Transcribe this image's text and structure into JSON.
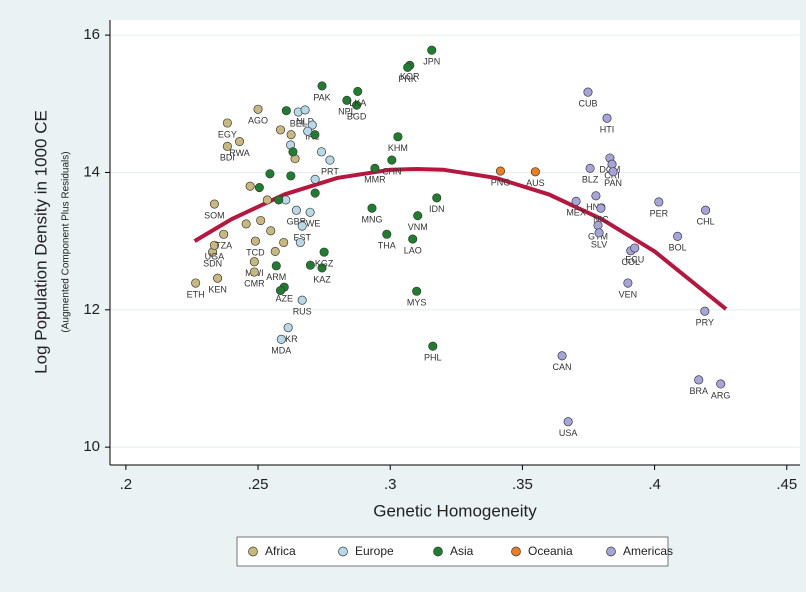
{
  "chart_data": {
    "type": "scatter",
    "y_title": "Log Population Density in 1000 CE",
    "y_subtitle": "(Augmented Component Plus Residuals)",
    "x_title": "Genetic Homogeneity",
    "xlim": [
      0.194,
      0.455
    ],
    "ylim": [
      9.74,
      16.22
    ],
    "xticks": [
      {
        "value": 0.2,
        "label": ".2"
      },
      {
        "value": 0.25,
        "label": ".25"
      },
      {
        "value": 0.3,
        "label": ".3"
      },
      {
        "value": 0.35,
        "label": ".35"
      },
      {
        "value": 0.4,
        "label": ".4"
      },
      {
        "value": 0.45,
        "label": ".45"
      }
    ],
    "yticks": [
      10,
      12,
      14,
      16
    ],
    "grid": "y",
    "legend_position": "bottom",
    "series": [
      {
        "name": "Africa",
        "color": "#c9b87e",
        "x": [
          0.2264,
          0.2347,
          0.2328,
          0.2335,
          0.237,
          0.2335,
          0.2384,
          0.243,
          0.2384,
          0.25,
          0.2486,
          0.2486,
          0.249,
          0.2455,
          0.251,
          0.2548,
          0.2565,
          0.2597,
          0.2585,
          0.2625,
          0.264,
          0.247,
          0.2535
        ],
        "y": [
          12.39,
          12.46,
          12.84,
          12.94,
          13.1,
          13.54,
          14.72,
          14.45,
          14.38,
          14.92,
          12.7,
          12.55,
          13.0,
          13.25,
          13.3,
          13.15,
          12.85,
          12.98,
          14.62,
          14.55,
          14.2,
          13.8,
          13.6
        ],
        "labels": [
          "ETH",
          "KEN",
          "SDN",
          "UGA",
          "TZA",
          "SOM",
          "EGY",
          "RWA",
          "BDI",
          "AGO",
          "MWI",
          "CMR",
          "TCD",
          null,
          null,
          null,
          null,
          null,
          null,
          null,
          null,
          null,
          null
        ]
      },
      {
        "name": "Europe",
        "color": "#b7d8e6",
        "x": [
          0.2667,
          0.2614,
          0.2588,
          0.2652,
          0.2678,
          0.2705,
          0.2772,
          0.2716,
          0.2645,
          0.2697,
          0.2667,
          0.266,
          0.2623,
          0.2688,
          0.274,
          0.2605
        ],
        "y": [
          12.14,
          11.74,
          11.57,
          14.88,
          14.91,
          14.69,
          14.18,
          13.9,
          13.45,
          13.42,
          13.22,
          12.98,
          14.4,
          14.6,
          14.3,
          13.6
        ],
        "labels": [
          "RUS",
          "UKR",
          "MDA",
          "BEL",
          "NLD",
          "IRL",
          "PRT",
          null,
          "GBR",
          "SWE",
          "EST",
          null,
          null,
          null,
          null,
          null
        ]
      },
      {
        "name": "Asia",
        "color": "#1d7f2e",
        "x": [
          0.3157,
          0.3074,
          0.3066,
          0.2742,
          0.2836,
          0.2873,
          0.2877,
          0.3029,
          0.3006,
          0.2942,
          0.2931,
          0.2987,
          0.3104,
          0.3085,
          0.3176,
          0.31,
          0.3161,
          0.2742,
          0.275,
          0.2599,
          0.2569,
          0.2585,
          0.2545,
          0.2607,
          0.2632,
          0.2716,
          0.2624,
          0.2505,
          0.2578,
          0.2698,
          0.2715
        ],
        "y": [
          15.78,
          15.56,
          15.53,
          15.26,
          15.05,
          14.98,
          15.18,
          14.52,
          14.18,
          14.06,
          13.48,
          13.1,
          13.37,
          13.03,
          13.63,
          12.27,
          11.47,
          12.61,
          12.84,
          12.33,
          12.64,
          12.28,
          13.98,
          14.9,
          14.3,
          13.7,
          13.95,
          13.78,
          13.6,
          12.65,
          14.55
        ],
        "labels": [
          "JPN",
          "KOR",
          "PRK",
          "PAK",
          "NPL",
          "BGD",
          "LKA",
          "KHM",
          "CHN",
          "MMR",
          "MNG",
          "THA",
          "VNM",
          "LAO",
          "IDN",
          "MYS",
          "PHL",
          "KAZ",
          "KGZ",
          "AZE",
          "ARM",
          null,
          null,
          null,
          null,
          null,
          null,
          null,
          null,
          null,
          null
        ]
      },
      {
        "name": "Oceania",
        "color": "#ee7d20",
        "x": [
          0.3417,
          0.3549
        ],
        "y": [
          14.02,
          14.01
        ],
        "labels": [
          "PNG",
          "AUS"
        ]
      },
      {
        "name": "Americas",
        "color": "#a5a5dc",
        "x": [
          0.3748,
          0.382,
          0.3831,
          0.3839,
          0.3843,
          0.3756,
          0.3703,
          0.3778,
          0.3797,
          0.3786,
          0.379,
          0.4016,
          0.4193,
          0.4087,
          0.391,
          0.3925,
          0.3899,
          0.419,
          0.365,
          0.3673,
          0.4167,
          0.425
        ],
        "y": [
          15.17,
          14.79,
          14.21,
          14.12,
          14.01,
          14.06,
          13.58,
          13.66,
          13.48,
          13.23,
          13.12,
          13.57,
          13.45,
          13.07,
          12.86,
          12.9,
          12.39,
          11.98,
          11.33,
          10.37,
          10.98,
          10.92
        ],
        "labels": [
          "CUB",
          "HTI",
          "DOM",
          "CRI",
          "PAN",
          "BLZ",
          "MEX",
          "HND",
          "NIC",
          "GTM",
          "SLV",
          "PER",
          "CHL",
          "BOL",
          "COL",
          "ECU",
          "VEN",
          "PRY",
          "CAN",
          "USA",
          "BRA",
          "ARG"
        ]
      }
    ],
    "fit": {
      "color": "#b5173f",
      "x": [
        0.226,
        0.24,
        0.26,
        0.28,
        0.3,
        0.31,
        0.32,
        0.34,
        0.36,
        0.38,
        0.4,
        0.427
      ],
      "y": [
        13.0,
        13.32,
        13.68,
        13.92,
        14.04,
        14.05,
        14.04,
        13.92,
        13.68,
        13.32,
        12.85,
        12.01
      ]
    }
  }
}
